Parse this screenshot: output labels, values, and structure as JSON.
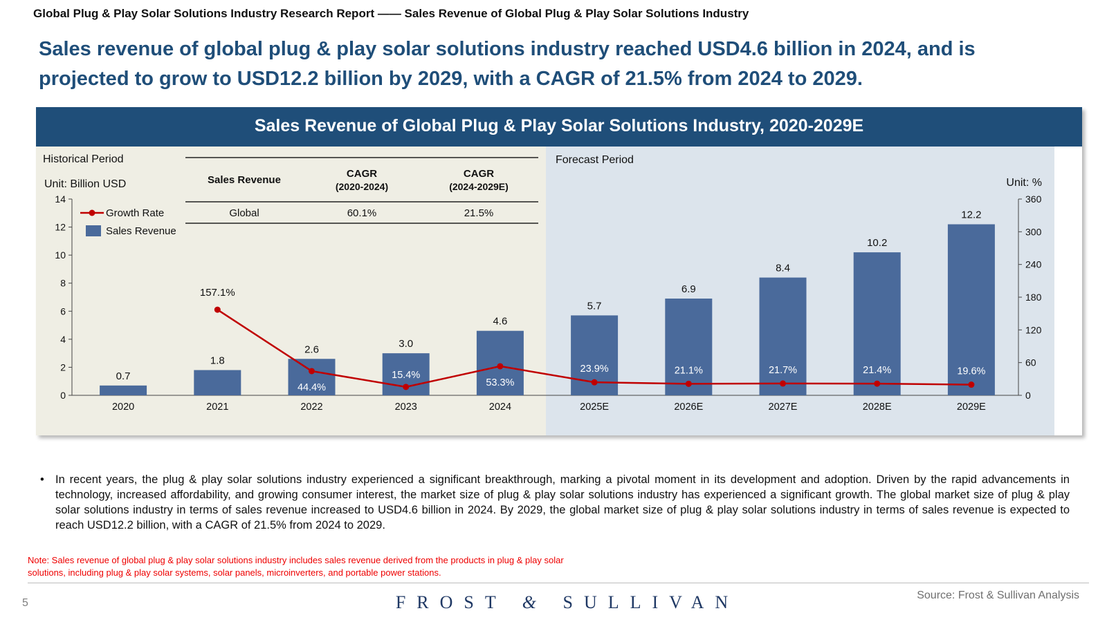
{
  "header": {
    "top_title": "Global Plug & Play Solar Solutions Industry Research Report —— Sales Revenue of Global Plug & Play Solar Solutions Industry",
    "headline": "Sales revenue of global plug & play solar solutions industry reached USD4.6 billion in 2024, and is projected to grow to USD12.2 billion by 2029, with a CAGR of 21.5% from 2024 to 2029."
  },
  "colors": {
    "brand_blue": "#1f4e79",
    "bar_blue": "#4a6a9b",
    "line_red": "#c00000",
    "historical_bg": "#efeee4",
    "forecast_bg": "#dce4ec",
    "note_red": "#ee0000"
  },
  "chart_data": {
    "type": "bar",
    "title": "Sales Revenue of Global Plug & Play Solar Solutions Industry, 2020-2029E",
    "categories": [
      "2020",
      "2021",
      "2022",
      "2023",
      "2024",
      "2025E",
      "2026E",
      "2027E",
      "2028E",
      "2029E"
    ],
    "series": [
      {
        "name": "Sales Revenue",
        "type": "bar",
        "axis": "left",
        "values": [
          0.7,
          1.8,
          2.6,
          3.0,
          4.6,
          5.7,
          6.9,
          8.4,
          10.2,
          12.2
        ],
        "labels": [
          "0.7",
          "1.8",
          "2.6",
          "3.0",
          "4.6",
          "5.7",
          "6.9",
          "8.4",
          "10.2",
          "12.2"
        ]
      },
      {
        "name": "Growth Rate",
        "type": "line",
        "axis": "right",
        "values": [
          null,
          157.1,
          44.4,
          15.4,
          53.3,
          23.9,
          21.1,
          21.7,
          21.4,
          19.6
        ],
        "labels": [
          "",
          "157.1%",
          "44.4%",
          "15.4%",
          "53.3%",
          "23.9%",
          "21.1%",
          "21.7%",
          "21.4%",
          "19.6%"
        ]
      }
    ],
    "y_left": {
      "label": "Unit: Billion USD",
      "ylim": [
        0,
        14
      ],
      "ticks": [
        "0",
        "2",
        "4",
        "6",
        "8",
        "10",
        "12",
        "14"
      ]
    },
    "y_right": {
      "label": "Unit: %",
      "ylim": [
        0,
        360
      ],
      "ticks": [
        "0",
        "60",
        "120",
        "180",
        "240",
        "300",
        "360"
      ]
    },
    "period_labels": {
      "historical": "Historical Period",
      "forecast": "Forecast Period",
      "forecast_starts": "2025E"
    },
    "legend": {
      "placement": "top-left",
      "entries": [
        "Growth Rate",
        "Sales Revenue"
      ]
    },
    "cagr_table": {
      "headers": [
        "Sales Revenue",
        "CAGR\n(2020-2024)",
        "CAGR\n(2024-2029E)"
      ],
      "rows": [
        [
          "Global",
          "60.1%",
          "21.5%"
        ]
      ]
    }
  },
  "bullets": [
    "In recent years, the plug & play solar solutions industry experienced a significant breakthrough, marking a pivotal moment in its development and adoption. Driven by the rapid advancements in technology, increased affordability, and growing consumer interest, the market size of plug & play solar solutions industry has experienced a significant growth. The global market size of plug & play solar solutions industry in terms of sales revenue increased to USD4.6 billion in 2024. By 2029, the global market size of plug & play solar solutions industry in terms of sales revenue is expected to reach USD12.2 billion, with a CAGR of 21.5% from 2024 to 2029."
  ],
  "note": "Note: Sales revenue of global plug & play solar solutions industry includes sales revenue derived from the products in plug & play solar solutions, including plug & play solar systems, solar panels, microinverters, and portable power stations.",
  "footer": {
    "page_number": "5",
    "source": "Source: Frost & Sullivan Analysis",
    "logo_left": "FROST",
    "logo_amp": "&",
    "logo_right": "SULLIVAN"
  }
}
